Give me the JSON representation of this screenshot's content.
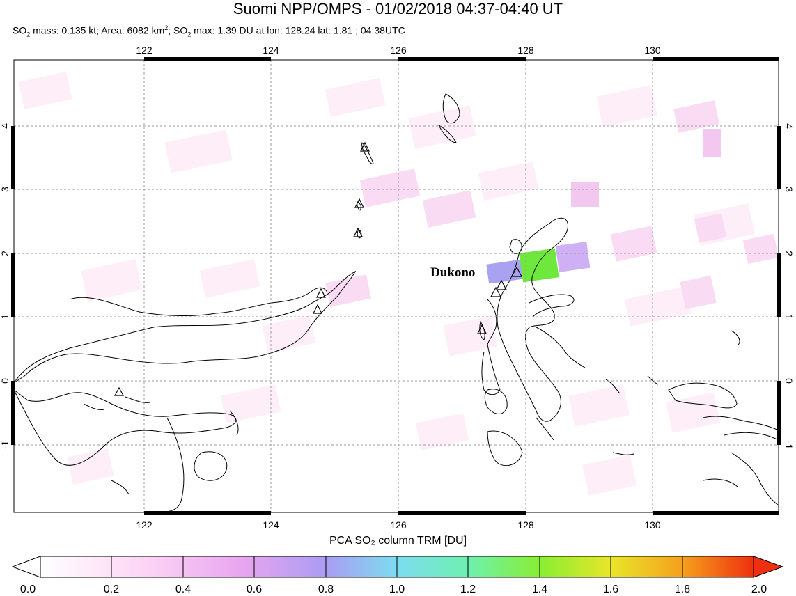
{
  "title": "Suomi NPP/OMPS - 01/02/2018 04:37-04:40 UT",
  "subtitle": {
    "so2_prefix": "SO",
    "mass_text": " mass: 0.135 kt; Area: 6082 km",
    "area_sup": "2",
    "so2_mid": "; SO",
    "max_text": " max: 1.39 DU at lon: 128.24 lat: 1.81 ; 04:38UTC",
    "sub2": "2"
  },
  "map": {
    "lon_ticks": [
      "122",
      "124",
      "126",
      "128",
      "130"
    ],
    "lat_ticks": [
      "4",
      "3",
      "2",
      "1",
      "0",
      "-1"
    ],
    "volcano_label": "Dukono"
  },
  "colorbar": {
    "title": "PCA SO₂ column TRM [DU]",
    "labels": [
      "0.0",
      "0.2",
      "0.4",
      "0.6",
      "0.8",
      "1.0",
      "1.2",
      "1.4",
      "1.6",
      "1.8",
      "2.0"
    ]
  }
}
